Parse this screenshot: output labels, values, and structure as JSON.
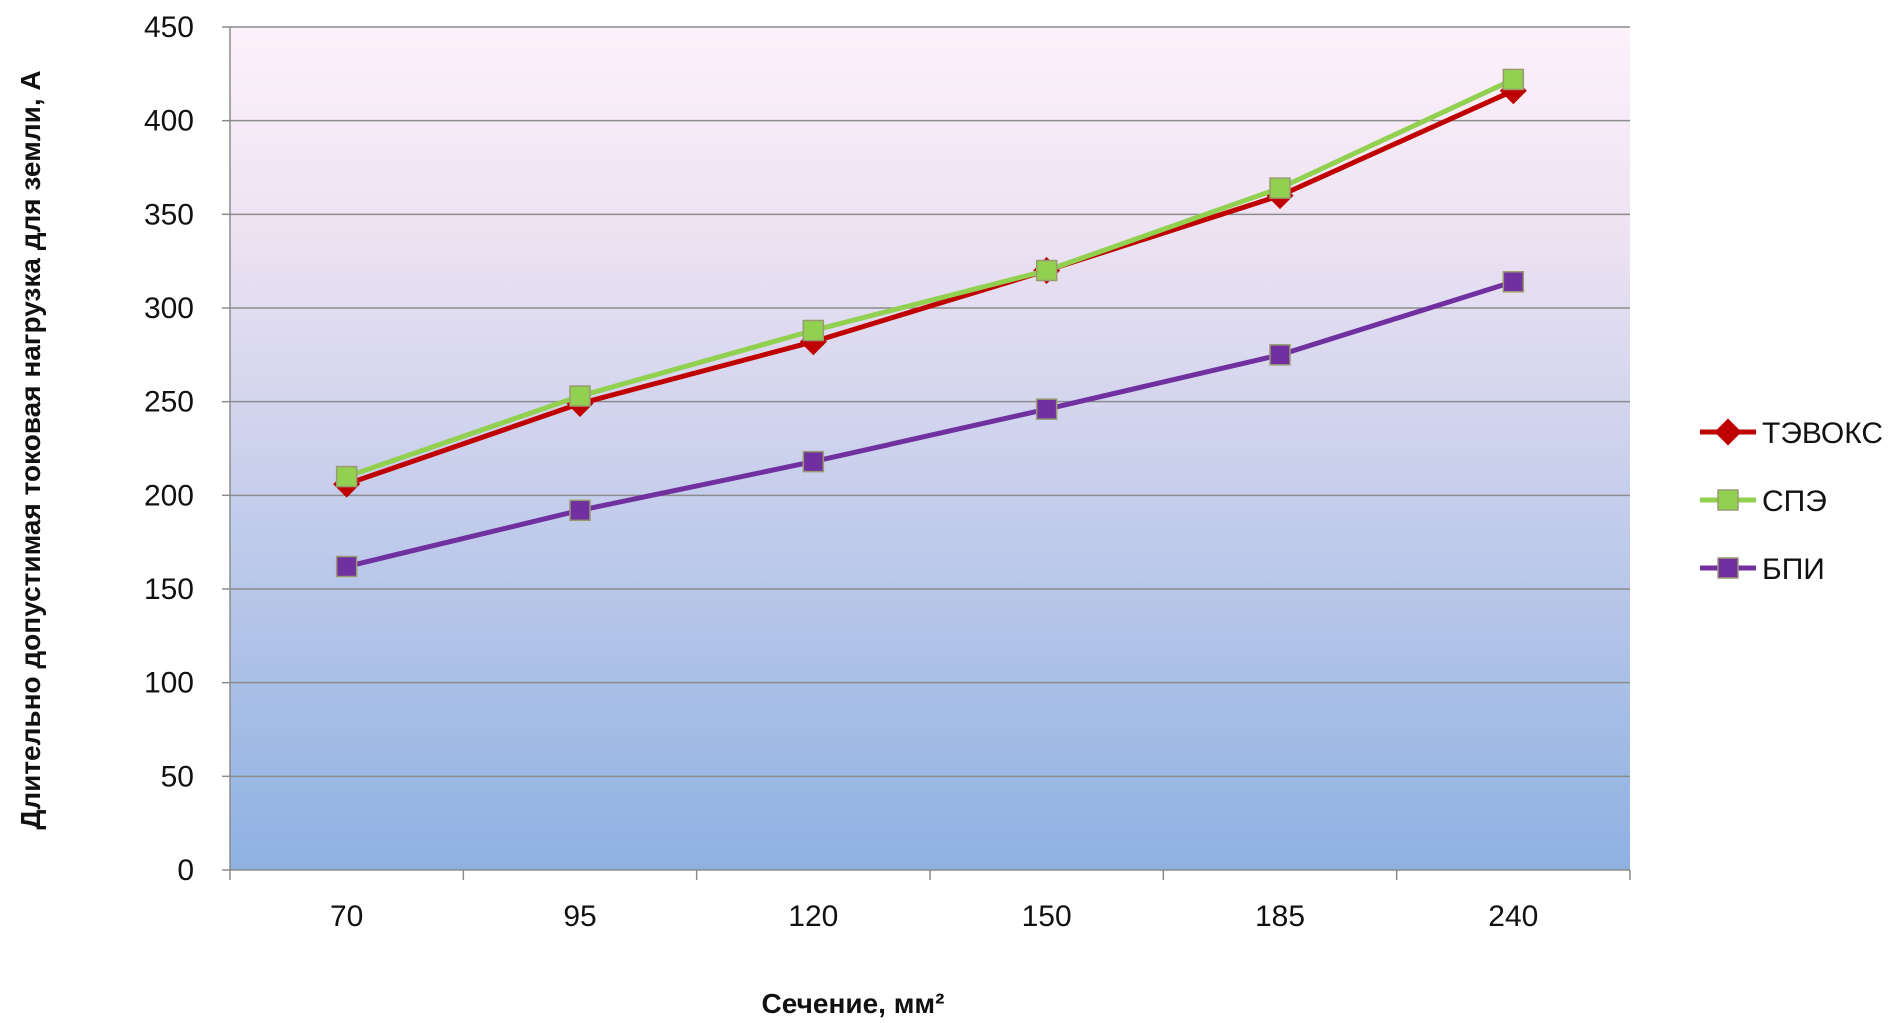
{
  "chart_data": {
    "type": "line",
    "title": "",
    "xlabel": "Сечение, мм²",
    "ylabel": "Длительно допустимая токовая нагрузка для земли, А",
    "categories": [
      "70",
      "95",
      "120",
      "150",
      "185",
      "240"
    ],
    "ylim": [
      0,
      450
    ],
    "yticks": [
      0,
      50,
      100,
      150,
      200,
      250,
      300,
      350,
      400,
      450
    ],
    "grid": true,
    "legend_position": "right",
    "series": [
      {
        "name": "ТЭВОКС",
        "values": [
          206,
          249,
          282,
          320,
          360,
          416
        ],
        "color": "#c00000",
        "marker": "diamond"
      },
      {
        "name": "СПЭ",
        "values": [
          210,
          253,
          288,
          320,
          364,
          422
        ],
        "color": "#92d050",
        "marker": "square"
      },
      {
        "name": "БПИ",
        "values": [
          162,
          192,
          218,
          246,
          275,
          314
        ],
        "color": "#7030a0",
        "marker": "square"
      }
    ],
    "plot_background": {
      "top": "#fdf2fa",
      "bottom": "#8eb1e2"
    }
  }
}
